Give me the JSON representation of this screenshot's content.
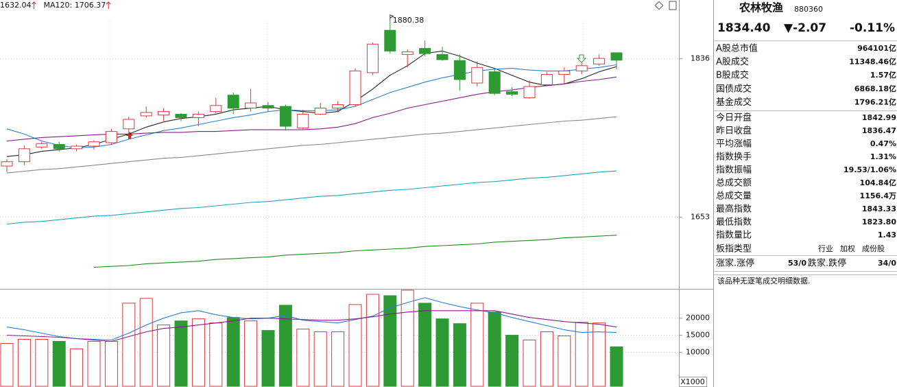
{
  "chart_data": [
    {
      "type": "candlestick",
      "legend": [
        {
          "label": "1632.04",
          "color": "#1e8a1e"
        },
        {
          "label": "MA120: 1706.37",
          "color": "#1aa6b8"
        }
      ],
      "annotation": "1880.38",
      "ylim": [
        1570,
        1904
      ],
      "yticks": [
        1836,
        1653
      ],
      "grid": true,
      "up_color": "#e0363c",
      "down_color": "#2e9a34",
      "open": [
        1712,
        1717,
        1734,
        1737,
        1732,
        1735,
        1739,
        1755,
        1770,
        1771,
        1772,
        1768,
        1775,
        1794,
        1779,
        1782,
        1781,
        1756,
        1772,
        1779,
        1783,
        1820,
        1869,
        1841,
        1848,
        1841,
        1834,
        1808,
        1821,
        1798,
        1791,
        1806,
        1818,
        1822,
        1830,
        1842.99
      ],
      "close": [
        1717,
        1732,
        1738,
        1732,
        1735,
        1740,
        1752,
        1766,
        1774,
        1775,
        1768,
        1772,
        1782,
        1779,
        1785,
        1779,
        1758,
        1772,
        1779,
        1783,
        1822,
        1853,
        1845,
        1844,
        1842,
        1835,
        1812,
        1826,
        1796,
        1795,
        1804,
        1818,
        1822,
        1828,
        1836.47,
        1834.4
      ],
      "high": [
        1720,
        1736,
        1740,
        1740,
        1737,
        1742,
        1755,
        1769,
        1781,
        1779,
        1773,
        1775,
        1791,
        1797,
        1801,
        1786,
        1783,
        1777,
        1785,
        1787,
        1825,
        1855,
        1880.38,
        1847,
        1857,
        1850,
        1841,
        1833,
        1824,
        1803,
        1811,
        1821,
        1826,
        1831,
        1841,
        1843.33
      ],
      "low": [
        1705,
        1713,
        1732,
        1729,
        1729,
        1731,
        1737,
        1748,
        1768,
        1764,
        1764,
        1758,
        1773,
        1772,
        1775,
        1775,
        1753,
        1755,
        1771,
        1775,
        1781,
        1817,
        1842,
        1826,
        1839,
        1834,
        1799,
        1804,
        1794,
        1793,
        1790,
        1805,
        1807,
        1818,
        1828,
        1823.8
      ],
      "series": [
        {
          "color": "#222222",
          "values": [
            1723,
            1725,
            1729,
            1731,
            1733,
            1737,
            1743,
            1749,
            1757,
            1763,
            1767,
            1769,
            1772,
            1777,
            1779,
            1781,
            1777,
            1775,
            1773,
            1775,
            1787,
            1801,
            1817,
            1828,
            1842,
            1845,
            1839,
            1831,
            1825,
            1817,
            1809,
            1805,
            1807,
            1813,
            1821,
            1827
          ]
        },
        {
          "color": "#2a7fd0",
          "values": [
            1755,
            1749,
            1741,
            1736,
            1733,
            1734,
            1737,
            1743,
            1748,
            1753,
            1756,
            1760,
            1764,
            1768,
            1771,
            1775,
            1777,
            1776,
            1776,
            1777,
            1781,
            1789,
            1797,
            1803,
            1809,
            1814,
            1818,
            1822,
            1824,
            1825,
            1823,
            1822,
            1822,
            1824,
            1826,
            1829
          ]
        },
        {
          "color": "#8a1a8a",
          "values": [
            1741,
            1743,
            1745,
            1746,
            1747,
            1748,
            1749,
            1749,
            1750,
            1751,
            1751,
            1752,
            1752,
            1753,
            1754,
            1754,
            1754,
            1754,
            1755,
            1757,
            1761,
            1768,
            1773,
            1779,
            1783,
            1787,
            1791,
            1795,
            1798,
            1800,
            1803,
            1805,
            1807,
            1810,
            1812,
            1815
          ]
        },
        {
          "color": "#888888",
          "values": [
            1704,
            1706,
            1708,
            1709,
            1711,
            1713,
            1715,
            1717,
            1719,
            1721,
            1722,
            1724,
            1726,
            1728,
            1730,
            1732,
            1734,
            1736,
            1737,
            1739,
            1741,
            1743,
            1745,
            1747,
            1749,
            1750,
            1752,
            1754,
            1756,
            1758,
            1760,
            1762,
            1764,
            1765,
            1767,
            1769
          ]
        },
        {
          "color": "#1aa6b8",
          "values": [
            1645,
            1647,
            1648,
            1650,
            1652,
            1654,
            1655,
            1657,
            1659,
            1661,
            1663,
            1664,
            1666,
            1668,
            1670,
            1671,
            1673,
            1675,
            1677,
            1678,
            1680,
            1682,
            1684,
            1685,
            1687,
            1689,
            1691,
            1693,
            1694,
            1696,
            1698,
            1699,
            1701,
            1703,
            1705,
            1706.37
          ]
        },
        {
          "color": "#1e8a1e",
          "values": [
            null,
            null,
            null,
            null,
            null,
            1595,
            1596,
            1597,
            1599,
            1600,
            1601,
            1602,
            1604,
            1605,
            1606,
            1607,
            1609,
            1610,
            1611,
            1612,
            1614,
            1615,
            1616,
            1617,
            1619,
            1620,
            1621,
            1622,
            1624,
            1625,
            1626,
            1627,
            1629,
            1630,
            1631,
            1632.04
          ]
        }
      ]
    },
    {
      "type": "bar",
      "ylim": [
        0,
        28600
      ],
      "yticks": [
        20000,
        15000,
        10000
      ],
      "unit_label": "X1000",
      "grid": true,
      "values": [
        12600,
        13800,
        13800,
        13200,
        11000,
        13200,
        13200,
        24400,
        25800,
        18000,
        19200,
        19800,
        18600,
        20200,
        19200,
        16400,
        23800,
        16800,
        16000,
        16000,
        24000,
        27000,
        26600,
        28200,
        24400,
        19800,
        18400,
        24400,
        21800,
        15000,
        13600,
        16000,
        14800,
        18800,
        18600,
        11600
      ],
      "series": [
        {
          "color": "#2a7fd0",
          "values": [
            17400,
            16600,
            15600,
            14600,
            14000,
            13800,
            13600,
            15600,
            18000,
            20000,
            21600,
            22200,
            21000,
            20200,
            19800,
            20000,
            20800,
            19400,
            19000,
            18600,
            19600,
            20600,
            23000,
            24600,
            26000,
            24600,
            23400,
            22400,
            21600,
            20200,
            19000,
            17800,
            16600,
            15800,
            16000,
            15800
          ]
        },
        {
          "color": "#8a1a8a",
          "values": [
            15000,
            14800,
            14600,
            14400,
            14000,
            13600,
            13200,
            14600,
            16000,
            17000,
            17400,
            18000,
            18600,
            19200,
            20000,
            20000,
            19800,
            19600,
            19400,
            19400,
            19800,
            20400,
            21200,
            21800,
            22200,
            22200,
            22200,
            22200,
            22200,
            21200,
            20200,
            19600,
            19000,
            18600,
            18200,
            17400
          ]
        }
      ]
    }
  ],
  "panel": {
    "name": "农林牧渔",
    "code": "880360",
    "price": "1834.40",
    "change": "▼-2.07",
    "change_pct": "-0.11%",
    "quote_color": "#1a9a1a",
    "rows": [
      {
        "label": "A股总市值",
        "value": "964101亿"
      },
      {
        "label": "A股成交",
        "value": "11348.46亿"
      },
      {
        "label": "B股成交",
        "value": "1.57亿"
      },
      {
        "label": "国债成交",
        "value": "6868.18亿"
      },
      {
        "label": "基金成交",
        "value": "1796.21亿"
      },
      {
        "label": "今日开盘",
        "value": "1842.99",
        "color": "#e0242a"
      },
      {
        "label": "昨日收盘",
        "value": "1836.47"
      },
      {
        "label": "平均涨幅",
        "value": "0.47%",
        "color": "#e0242a"
      },
      {
        "label": "指数换手",
        "value": "1.31%"
      },
      {
        "label": "指数振幅",
        "value": "19.53/1.06%"
      },
      {
        "label": "总成交额",
        "value": "104.84亿"
      },
      {
        "label": "总成交量",
        "value": "1156.4万"
      },
      {
        "label": "最高指数",
        "value": "1843.33",
        "color": "#e0242a"
      },
      {
        "label": "最低指数",
        "value": "1823.80",
        "color": "#1a9a1a"
      },
      {
        "label": "指数量比",
        "value": "1.43",
        "color": "#e0242a"
      }
    ],
    "board": {
      "label": "板指类型",
      "options": [
        "行业",
        "加权",
        "成份股"
      ]
    },
    "breadth": {
      "up_label": "涨家.涨停",
      "up_value": "53/0",
      "up_color": "#e0242a",
      "down_label": "跌家.跌停",
      "down_value": "34/0",
      "down_color": "#1a9a1a"
    },
    "message": "该品种无逐笔成交明细数据."
  }
}
